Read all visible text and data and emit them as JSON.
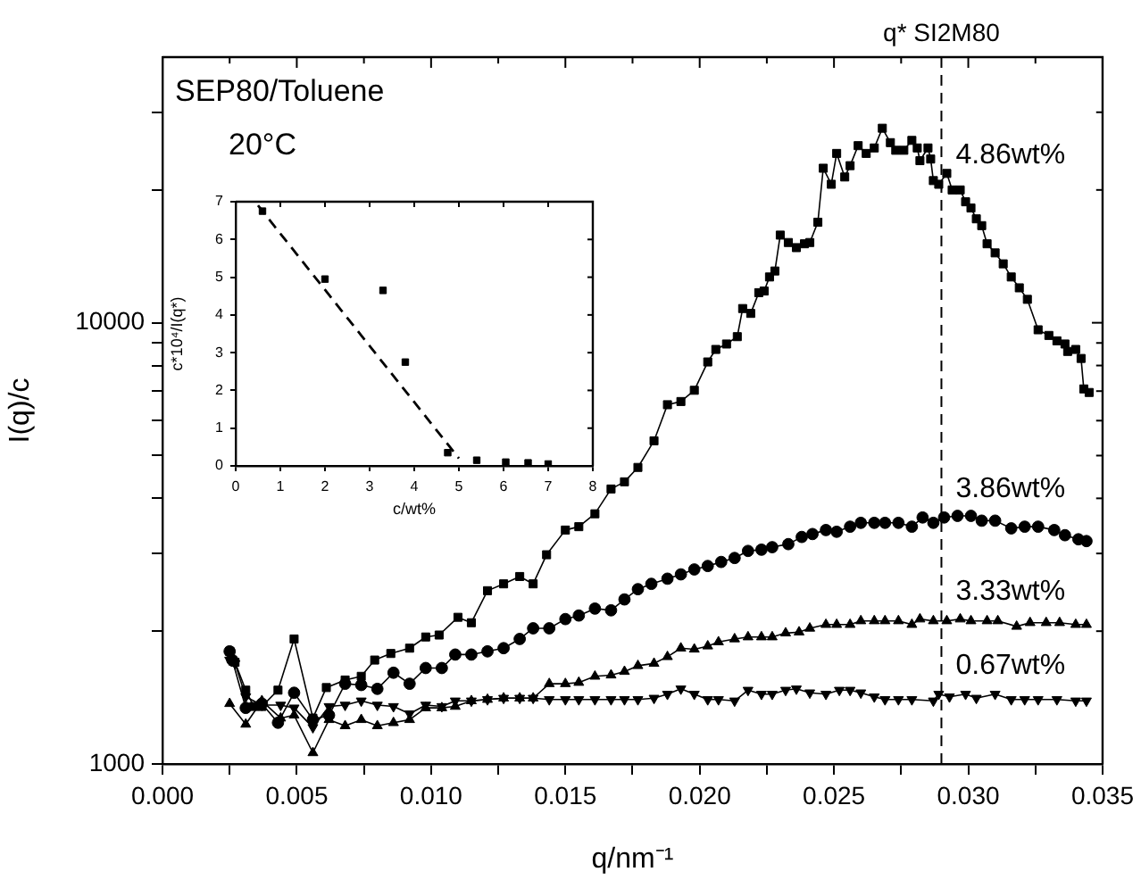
{
  "chart_data": [
    {
      "type": "line",
      "xlabel": "q/nm⁻¹",
      "ylabel": "I(q)/c",
      "xlim": [
        0,
        0.035
      ],
      "xticks": [
        {
          "value": 0,
          "label": "0.000"
        },
        {
          "value": 0.0025,
          "label": null
        },
        0.005,
        {
          "value": 0.0075,
          "label": null
        },
        {
          "value": 0.01,
          "label": "0.010"
        },
        {
          "value": 0.0125,
          "label": null
        },
        0.015,
        {
          "value": 0.0175,
          "label": null
        },
        {
          "value": 0.02,
          "label": "0.020"
        },
        {
          "value": 0.0225,
          "label": null
        },
        0.025,
        {
          "value": 0.0275,
          "label": null
        },
        {
          "value": 0.03,
          "label": "0.030"
        },
        {
          "value": 0.0325,
          "label": null
        },
        0.035
      ],
      "ylim": [
        1000,
        40000
      ],
      "yticks": [
        1000,
        {
          "value": 2000,
          "label": null
        },
        {
          "value": 3000,
          "label": null
        },
        {
          "value": 4000,
          "label": null
        },
        {
          "value": 5000,
          "label": null
        },
        {
          "value": 6000,
          "label": null
        },
        {
          "value": 7000,
          "label": null
        },
        {
          "value": 8000,
          "label": null
        },
        {
          "value": 9000,
          "label": null
        },
        10000,
        {
          "value": 20000,
          "label": null
        },
        {
          "value": 30000,
          "label": null
        }
      ],
      "log": "y",
      "grid": false,
      "legend": "right",
      "line_style": "solid",
      "ref_lines": [
        {
          "axis": "x",
          "value": 0.029,
          "label": "q* SI2M80",
          "line_style": "dashed"
        }
      ],
      "annotations": [
        "SEP80/Toluene",
        "20°C"
      ],
      "series": [
        {
          "name": "4.86wt%",
          "color": "#000000",
          "marker": "square",
          "x": [
            0.0025,
            0.0027,
            0.0031,
            0.0034,
            0.0037,
            0.0043,
            0.0049,
            0.0056,
            0.0061,
            0.0068,
            0.0074,
            0.0079,
            0.0085,
            0.0092,
            0.0098,
            0.0103,
            0.011,
            0.0115,
            0.0121,
            0.0127,
            0.0133,
            0.0138,
            0.0143,
            0.015,
            0.0155,
            0.0161,
            0.0167,
            0.0172,
            0.0177,
            0.0183,
            0.0188,
            0.0193,
            0.0198,
            0.0203,
            0.0206,
            0.021,
            0.0214,
            0.0216,
            0.0219,
            0.0222,
            0.0224,
            0.0226,
            0.0228,
            0.023,
            0.0233,
            0.0236,
            0.0239,
            0.0241,
            0.0244,
            0.0246,
            0.0249,
            0.0251,
            0.0254,
            0.0256,
            0.0259,
            0.0262,
            0.0265,
            0.0268,
            0.0271,
            0.0273,
            0.0276,
            0.0279,
            0.0281,
            0.0282,
            0.0285,
            0.0286,
            0.0287,
            0.0289,
            0.0292,
            0.0294,
            0.0297,
            0.0299,
            0.0301,
            0.0303,
            0.0305,
            0.0307,
            0.031,
            0.0313,
            0.0316,
            0.0319,
            0.0322,
            0.0326,
            0.033,
            0.0333,
            0.0336,
            0.0337,
            0.034,
            0.0342,
            0.0343,
            0.0345
          ],
          "values": [
            1800,
            1700,
            1470,
            1350,
            1350,
            1470,
            1920,
            1270,
            1490,
            1550,
            1580,
            1720,
            1780,
            1830,
            1940,
            1960,
            2150,
            2090,
            2470,
            2560,
            2660,
            2560,
            2980,
            3390,
            3450,
            3690,
            4200,
            4360,
            4700,
            5400,
            6520,
            6630,
            7030,
            8150,
            8700,
            8950,
            9300,
            10770,
            10500,
            11700,
            11800,
            12700,
            13100,
            15800,
            15200,
            14800,
            15100,
            15200,
            16900,
            22400,
            20600,
            24200,
            21400,
            22700,
            25200,
            24200,
            24900,
            27600,
            25600,
            24600,
            24600,
            25900,
            24900,
            23300,
            24900,
            23500,
            21000,
            20600,
            21800,
            20000,
            20000,
            18800,
            18200,
            17200,
            16600,
            15100,
            14400,
            13600,
            12700,
            12000,
            11300,
            9640,
            9360,
            9100,
            8950,
            8610,
            8700,
            8300,
            7080,
            6950
          ]
        },
        {
          "name": "3.86wt%",
          "color": "#000000",
          "marker": "circle",
          "x": [
            0.0025,
            0.0026,
            0.0031,
            0.0037,
            0.0043,
            0.0049,
            0.0056,
            0.0062,
            0.0068,
            0.0074,
            0.008,
            0.0086,
            0.0092,
            0.0098,
            0.0104,
            0.0109,
            0.0115,
            0.0121,
            0.0127,
            0.0133,
            0.0138,
            0.0144,
            0.015,
            0.0155,
            0.0161,
            0.0167,
            0.0172,
            0.0177,
            0.0182,
            0.0188,
            0.0193,
            0.0198,
            0.0203,
            0.0208,
            0.0213,
            0.0218,
            0.0223,
            0.0227,
            0.0233,
            0.0238,
            0.0242,
            0.0247,
            0.0251,
            0.0256,
            0.026,
            0.0265,
            0.0269,
            0.0274,
            0.0279,
            0.0283,
            0.0287,
            0.0291,
            0.0296,
            0.0301,
            0.0305,
            0.031,
            0.0316,
            0.0321,
            0.0326,
            0.0332,
            0.0336,
            0.0341,
            0.0344
          ],
          "values": [
            1800,
            1720,
            1340,
            1370,
            1240,
            1450,
            1260,
            1290,
            1520,
            1510,
            1480,
            1610,
            1520,
            1650,
            1650,
            1770,
            1770,
            1800,
            1830,
            1920,
            2030,
            2030,
            2130,
            2170,
            2250,
            2230,
            2360,
            2490,
            2560,
            2630,
            2690,
            2760,
            2810,
            2870,
            2930,
            3040,
            3060,
            3100,
            3150,
            3270,
            3320,
            3390,
            3360,
            3450,
            3520,
            3520,
            3520,
            3520,
            3450,
            3620,
            3520,
            3620,
            3650,
            3650,
            3560,
            3560,
            3420,
            3450,
            3450,
            3390,
            3300,
            3230,
            3200
          ]
        },
        {
          "name": "3.33wt%",
          "color": "#000000",
          "marker": "triangle",
          "x": [
            0.0025,
            0.0031,
            0.0037,
            0.0044,
            0.0049,
            0.0056,
            0.0062,
            0.0068,
            0.0074,
            0.008,
            0.0086,
            0.0092,
            0.0098,
            0.0104,
            0.0109,
            0.0115,
            0.0121,
            0.0127,
            0.0133,
            0.0138,
            0.0144,
            0.015,
            0.0155,
            0.0161,
            0.0167,
            0.0172,
            0.0177,
            0.0183,
            0.0188,
            0.0193,
            0.0198,
            0.0203,
            0.0207,
            0.0213,
            0.0218,
            0.0223,
            0.0227,
            0.0232,
            0.0237,
            0.0241,
            0.0247,
            0.0251,
            0.0256,
            0.026,
            0.0265,
            0.0269,
            0.0274,
            0.0279,
            0.0282,
            0.0287,
            0.0292,
            0.0297,
            0.0301,
            0.0307,
            0.0311,
            0.0318,
            0.0323,
            0.0329,
            0.0334,
            0.034,
            0.0344
          ],
          "values": [
            1370,
            1230,
            1390,
            1270,
            1290,
            1060,
            1260,
            1220,
            1260,
            1220,
            1240,
            1260,
            1340,
            1340,
            1350,
            1390,
            1400,
            1410,
            1410,
            1410,
            1520,
            1520,
            1530,
            1580,
            1590,
            1620,
            1670,
            1690,
            1750,
            1830,
            1820,
            1850,
            1890,
            1920,
            1940,
            1940,
            1940,
            1980,
            1990,
            2030,
            2070,
            2070,
            2070,
            2110,
            2110,
            2110,
            2110,
            2070,
            2130,
            2110,
            2110,
            2130,
            2110,
            2110,
            2110,
            2050,
            2090,
            2090,
            2090,
            2070,
            2070
          ]
        },
        {
          "name": "0.67wt%",
          "color": "#000000",
          "marker": "triangle-down",
          "x": [
            0.0025,
            0.0027,
            0.0031,
            0.0037,
            0.0044,
            0.0049,
            0.0056,
            0.0062,
            0.0068,
            0.0074,
            0.008,
            0.0086,
            0.0092,
            0.0098,
            0.0104,
            0.0109,
            0.0115,
            0.0121,
            0.0127,
            0.0133,
            0.0138,
            0.0144,
            0.015,
            0.0155,
            0.0161,
            0.0167,
            0.0172,
            0.0177,
            0.0183,
            0.0188,
            0.0193,
            0.0198,
            0.0203,
            0.0207,
            0.0213,
            0.0218,
            0.0223,
            0.0227,
            0.0232,
            0.0236,
            0.0241,
            0.0247,
            0.0252,
            0.0256,
            0.026,
            0.0265,
            0.0269,
            0.0274,
            0.0279,
            0.0287,
            0.0289,
            0.0293,
            0.0299,
            0.0303,
            0.031,
            0.0316,
            0.0321,
            0.0326,
            0.0333,
            0.034,
            0.0344
          ],
          "values": [
            1720,
            1690,
            1420,
            1360,
            1360,
            1340,
            1210,
            1350,
            1360,
            1390,
            1360,
            1350,
            1300,
            1360,
            1350,
            1390,
            1390,
            1400,
            1410,
            1410,
            1410,
            1400,
            1400,
            1400,
            1400,
            1400,
            1400,
            1400,
            1410,
            1440,
            1480,
            1440,
            1400,
            1400,
            1390,
            1470,
            1440,
            1440,
            1470,
            1480,
            1450,
            1440,
            1470,
            1470,
            1450,
            1420,
            1400,
            1400,
            1400,
            1390,
            1440,
            1420,
            1440,
            1410,
            1440,
            1400,
            1400,
            1400,
            1400,
            1390,
            1390
          ]
        }
      ]
    },
    {
      "type": "scatter",
      "xlabel": "c/wt%",
      "ylabel": "c*10⁴/I(q*)",
      "xlim": [
        0,
        8
      ],
      "xticks": [
        0,
        1,
        2,
        3,
        4,
        5,
        6,
        7,
        8
      ],
      "ylim": [
        0,
        7
      ],
      "yticks": [
        0,
        1,
        2,
        3,
        4,
        5,
        6,
        7
      ],
      "grid": false,
      "marker": "square",
      "series": [
        {
          "color": "#000000",
          "x": [
            0.6,
            2,
            3.3,
            3.8,
            4.75,
            5.4,
            6.05,
            6.55,
            7
          ],
          "values": [
            6.75,
            4.95,
            4.65,
            2.75,
            0.35,
            0.15,
            0.1,
            0.08,
            0.05
          ]
        },
        {
          "type": "line",
          "color": "#000000",
          "line_style": "dashed",
          "marker": "none",
          "x": [
            0.5,
            5
          ],
          "values": [
            6.9,
            0.2
          ]
        }
      ]
    }
  ]
}
